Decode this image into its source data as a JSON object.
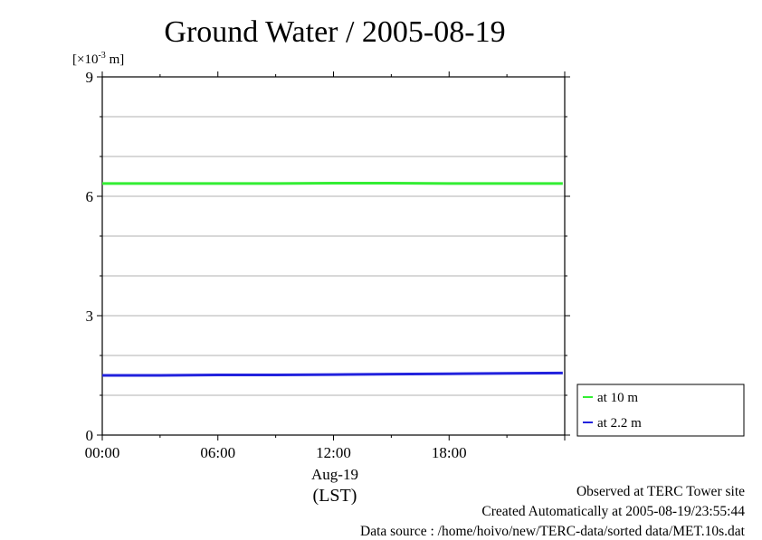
{
  "chart_data": {
    "type": "line",
    "title": "Ground Water / 2005-08-19",
    "yunit_prefix": "[×10",
    "yunit_exp": "-3",
    "yunit_suffix": " m]",
    "ylim": [
      0,
      9
    ],
    "yticks": [
      0,
      3,
      6,
      9
    ],
    "xlim": [
      0,
      24
    ],
    "xticks": [
      {
        "value": 0,
        "label": "00:00"
      },
      {
        "value": 6,
        "label": "06:00"
      },
      {
        "value": 12,
        "label": "12:00"
      },
      {
        "value": 18,
        "label": "18:00"
      }
    ],
    "date_label": "Aug-19",
    "xlabel": "(LST)",
    "grid": true,
    "legend_position": "bottom-right, outside plot",
    "series": [
      {
        "name": "at 10 m",
        "color": "#33ee33",
        "x": [
          0,
          3,
          6,
          9,
          12,
          15,
          18,
          21,
          23.9
        ],
        "y": [
          6.32,
          6.32,
          6.32,
          6.32,
          6.33,
          6.33,
          6.32,
          6.32,
          6.32
        ]
      },
      {
        "name": "at 2.2 m",
        "color": "#2222dd",
        "x": [
          0,
          3,
          6,
          9,
          12,
          15,
          18,
          21,
          23.9
        ],
        "y": [
          1.5,
          1.5,
          1.51,
          1.51,
          1.52,
          1.53,
          1.54,
          1.55,
          1.56
        ]
      }
    ]
  },
  "footer": {
    "observed": "Observed at TERC Tower site",
    "created": "Created Automatically at 2005-08-19/23:55:44",
    "source": "Data source : /home/hoivo/new/TERC-data/sorted  data/MET.10s.dat"
  }
}
